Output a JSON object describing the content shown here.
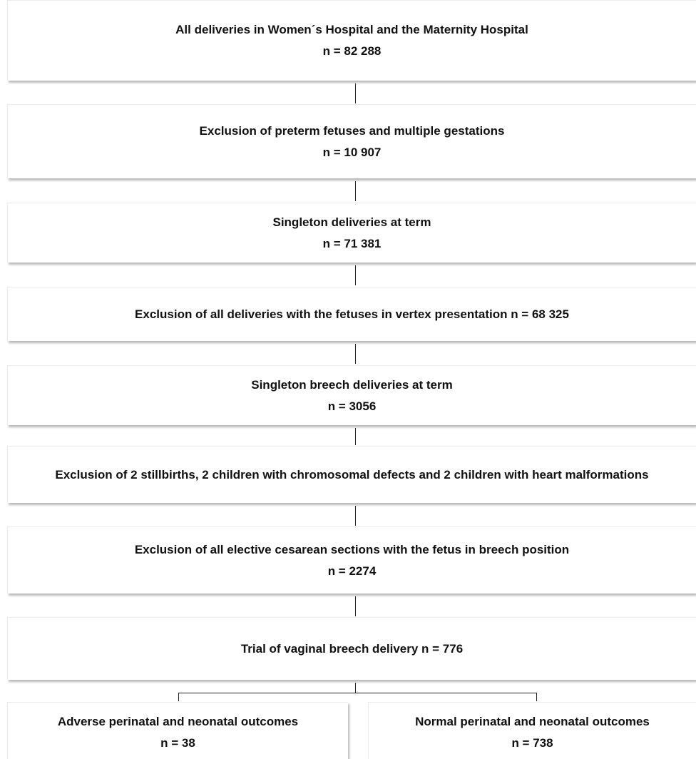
{
  "steps": [
    {
      "title": "All deliveries in Women´s Hospital and the Maternity Hospital",
      "n": "n = 82 288"
    },
    {
      "title": "Exclusion of preterm fetuses and multiple gestations",
      "n": "n = 10 907"
    },
    {
      "title": "Singleton deliveries at term",
      "n": "n = 71 381"
    },
    {
      "title": "Exclusion of all deliveries with the fetuses in vertex presentation n = 68 325"
    },
    {
      "title": "Singleton breech deliveries at term",
      "n": "n = 3056"
    },
    {
      "title": "Exclusion of 2 stillbirths, 2 children with chromosomal defects and 2 children with heart malformations"
    },
    {
      "title": "Exclusion of all elective cesarean sections with the fetus in breech position",
      "n": "n = 2274"
    },
    {
      "title": "Trial of vaginal breech delivery n = 776"
    }
  ],
  "outcomes": {
    "adverse": {
      "title": "Adverse perinatal and neonatal outcomes",
      "n": "n = 38"
    },
    "normal": {
      "title": "Normal perinatal and neonatal outcomes",
      "n": "n = 738"
    }
  }
}
